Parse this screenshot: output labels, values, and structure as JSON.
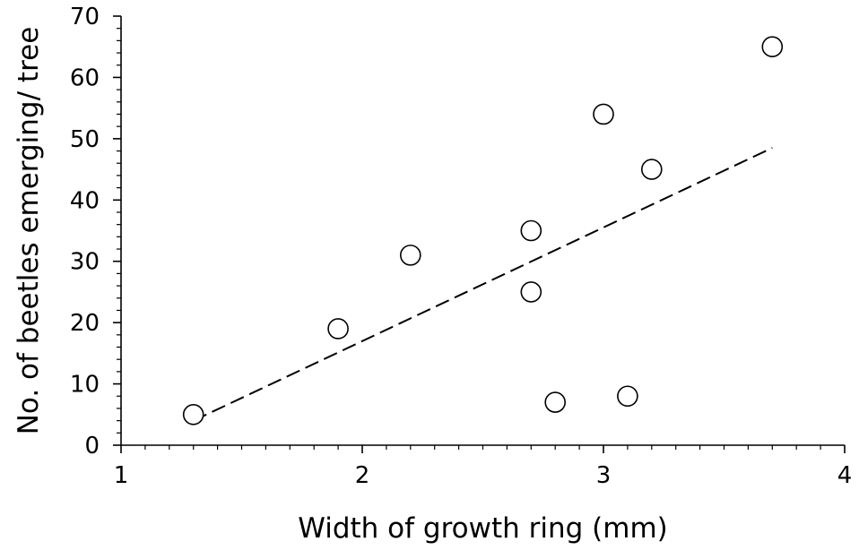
{
  "chart_data": {
    "type": "scatter",
    "title": "",
    "xlabel": "Width of growth ring (mm)",
    "ylabel": "No. of beetles emerging/ tree",
    "xlim": [
      1,
      4
    ],
    "ylim": [
      0,
      70
    ],
    "x_ticks": [
      "1",
      "2",
      "3",
      "4"
    ],
    "y_ticks": [
      "0",
      "10",
      "20",
      "30",
      "40",
      "50",
      "60",
      "70"
    ],
    "grid": false,
    "legend": "none",
    "points": [
      {
        "x": 1.3,
        "y": 5
      },
      {
        "x": 1.9,
        "y": 19
      },
      {
        "x": 2.2,
        "y": 31
      },
      {
        "x": 2.7,
        "y": 35
      },
      {
        "x": 2.7,
        "y": 25
      },
      {
        "x": 2.8,
        "y": 7
      },
      {
        "x": 3.0,
        "y": 54
      },
      {
        "x": 3.1,
        "y": 8
      },
      {
        "x": 3.2,
        "y": 45
      },
      {
        "x": 3.7,
        "y": 65
      }
    ],
    "trendline": {
      "style": "dashed",
      "start": {
        "x": 1.3,
        "y": 4
      },
      "end": {
        "x": 3.7,
        "y": 48.5
      }
    }
  }
}
